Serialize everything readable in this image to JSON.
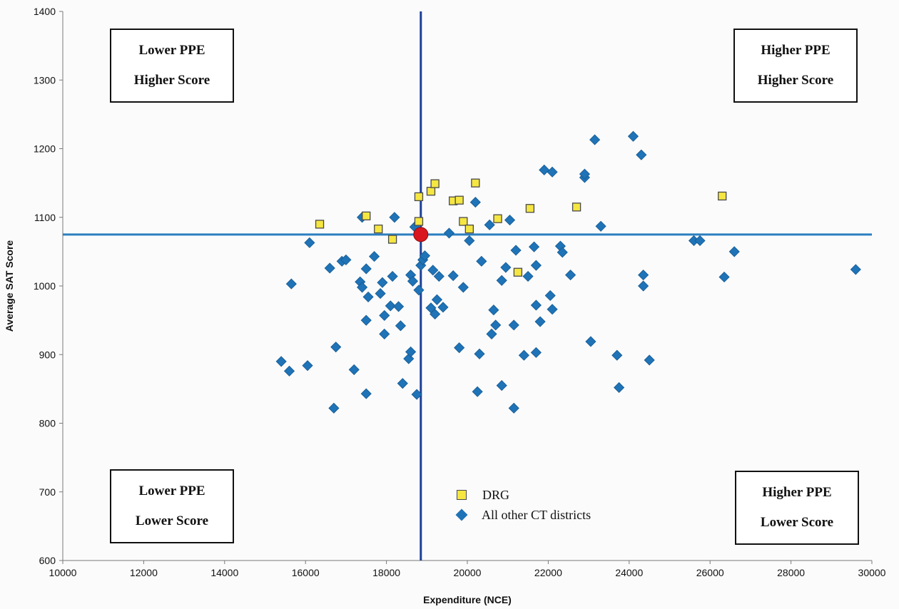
{
  "chart_data": {
    "type": "scatter",
    "xlabel": "Expenditure (NCE)",
    "ylabel": "Average SAT Score",
    "xlim": [
      10000,
      30000
    ],
    "ylim": [
      600,
      1400
    ],
    "xticks": [
      "10000",
      "12000",
      "14000",
      "16000",
      "18000",
      "20000",
      "22000",
      "24000",
      "26000",
      "28000",
      "30000"
    ],
    "yticks": [
      "600",
      "700",
      "800",
      "900",
      "1000",
      "1100",
      "1200",
      "1300",
      "1400"
    ],
    "reference_lines": {
      "x": 18850,
      "y": 1075
    },
    "highlight_point": {
      "x": 18850,
      "y": 1075,
      "color": "#d9161f"
    },
    "quadrant_labels": {
      "top_left": [
        "Lower PPE",
        "Higher Score"
      ],
      "top_right": [
        "Higher PPE",
        "Higher Score"
      ],
      "bottom_left": [
        "Lower PPE",
        "Lower Score"
      ],
      "bottom_right": [
        "Higher PPE",
        "Lower Score"
      ]
    },
    "legend_position": "bottom-center",
    "series": [
      {
        "name": "DRG",
        "marker": "square",
        "color": "#f5e642",
        "points": [
          [
            16350,
            1090
          ],
          [
            17500,
            1102
          ],
          [
            17800,
            1083
          ],
          [
            18150,
            1068
          ],
          [
            18800,
            1130
          ],
          [
            18800,
            1094
          ],
          [
            19100,
            1138
          ],
          [
            19200,
            1149
          ],
          [
            19650,
            1124
          ],
          [
            19800,
            1125
          ],
          [
            19900,
            1094
          ],
          [
            20050,
            1083
          ],
          [
            20200,
            1150
          ],
          [
            20750,
            1098
          ],
          [
            21250,
            1020
          ],
          [
            21550,
            1113
          ],
          [
            22700,
            1115
          ],
          [
            26300,
            1131
          ]
        ]
      },
      {
        "name": "All other CT districts",
        "marker": "diamond",
        "color": "#1f73b7",
        "points": [
          [
            15400,
            890
          ],
          [
            15600,
            876
          ],
          [
            15650,
            1003
          ],
          [
            16050,
            884
          ],
          [
            16100,
            1063
          ],
          [
            16600,
            1026
          ],
          [
            16700,
            822
          ],
          [
            16750,
            911
          ],
          [
            16900,
            1036
          ],
          [
            17000,
            1038
          ],
          [
            17200,
            878
          ],
          [
            17350,
            1006
          ],
          [
            17400,
            998
          ],
          [
            17400,
            1100
          ],
          [
            17500,
            1025
          ],
          [
            17500,
            843
          ],
          [
            17500,
            950
          ],
          [
            17550,
            984
          ],
          [
            17700,
            1043
          ],
          [
            17850,
            989
          ],
          [
            17900,
            1005
          ],
          [
            17950,
            957
          ],
          [
            17950,
            930
          ],
          [
            18100,
            971
          ],
          [
            18150,
            1014
          ],
          [
            18200,
            1100
          ],
          [
            18300,
            970
          ],
          [
            18350,
            942
          ],
          [
            18400,
            858
          ],
          [
            18550,
            894
          ],
          [
            18600,
            904
          ],
          [
            18600,
            1016
          ],
          [
            18650,
            1007
          ],
          [
            18700,
            1086
          ],
          [
            18750,
            842
          ],
          [
            18800,
            994
          ],
          [
            18850,
            1030
          ],
          [
            18900,
            1038
          ],
          [
            18950,
            1044
          ],
          [
            19100,
            968
          ],
          [
            19150,
            1023
          ],
          [
            19200,
            959
          ],
          [
            19250,
            980
          ],
          [
            19300,
            1014
          ],
          [
            19400,
            969
          ],
          [
            19550,
            1077
          ],
          [
            19650,
            1015
          ],
          [
            19800,
            910
          ],
          [
            19900,
            998
          ],
          [
            20050,
            1066
          ],
          [
            20200,
            1122
          ],
          [
            20250,
            846
          ],
          [
            20300,
            901
          ],
          [
            20350,
            1036
          ],
          [
            20550,
            1089
          ],
          [
            20600,
            930
          ],
          [
            20650,
            965
          ],
          [
            20700,
            943
          ],
          [
            20850,
            855
          ],
          [
            20850,
            1008
          ],
          [
            20950,
            1027
          ],
          [
            21050,
            1096
          ],
          [
            21150,
            943
          ],
          [
            21150,
            822
          ],
          [
            21200,
            1052
          ],
          [
            21400,
            899
          ],
          [
            21500,
            1014
          ],
          [
            21650,
            1057
          ],
          [
            21700,
            903
          ],
          [
            21700,
            972
          ],
          [
            21700,
            1030
          ],
          [
            21800,
            948
          ],
          [
            21900,
            1169
          ],
          [
            22050,
            986
          ],
          [
            22100,
            1166
          ],
          [
            22100,
            966
          ],
          [
            22300,
            1058
          ],
          [
            22350,
            1049
          ],
          [
            22550,
            1016
          ],
          [
            22900,
            1158
          ],
          [
            22900,
            1163
          ],
          [
            23050,
            919
          ],
          [
            23150,
            1213
          ],
          [
            23300,
            1087
          ],
          [
            23700,
            899
          ],
          [
            23750,
            852
          ],
          [
            24100,
            1218
          ],
          [
            24300,
            1191
          ],
          [
            24350,
            1016
          ],
          [
            24350,
            1000
          ],
          [
            24500,
            892
          ],
          [
            25600,
            1066
          ],
          [
            25750,
            1066
          ],
          [
            26350,
            1013
          ],
          [
            26600,
            1050
          ],
          [
            29600,
            1024
          ]
        ]
      }
    ]
  }
}
